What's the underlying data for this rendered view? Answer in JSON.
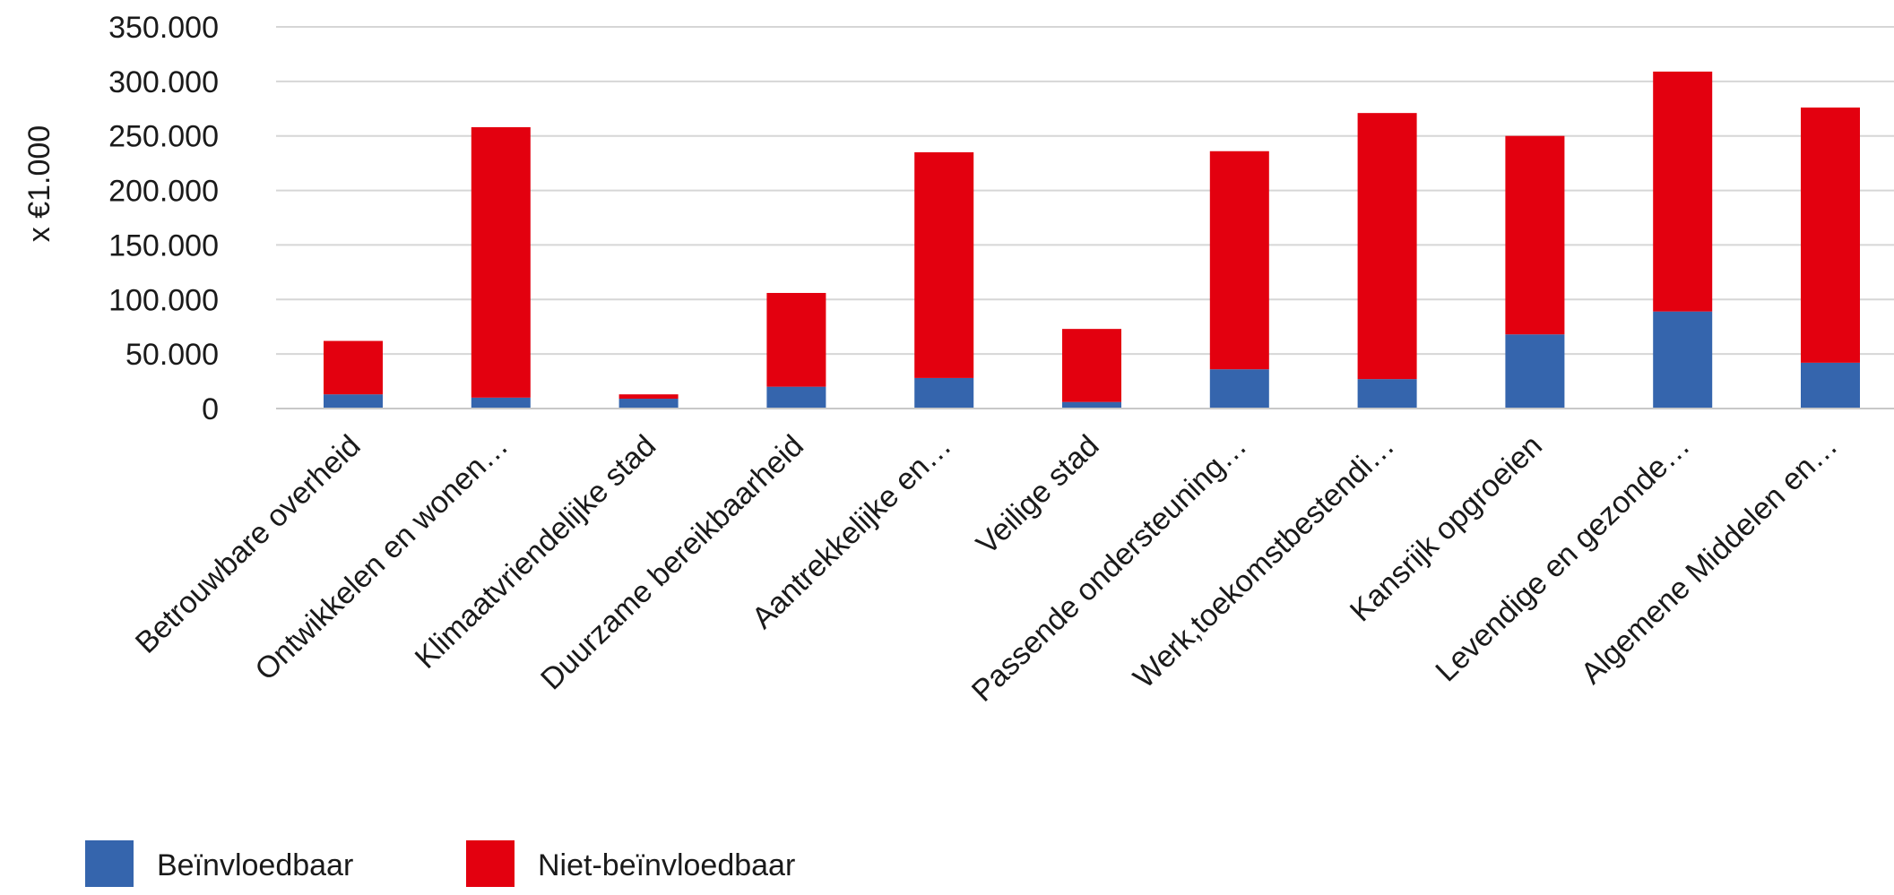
{
  "chart_data": {
    "type": "bar",
    "stacked": true,
    "ylabel": "x €1.000",
    "ylim": [
      0,
      350000
    ],
    "yticks": [
      0,
      50000,
      100000,
      150000,
      200000,
      250000,
      300000,
      350000
    ],
    "ytick_labels": [
      "0",
      "50.000",
      "100.000",
      "150.000",
      "200.000",
      "250.000",
      "300.000",
      "350.000"
    ],
    "grid": true,
    "legend_position": "bottom-left",
    "categories": [
      "Betrouwbare overheid",
      "Ontwikkelen en wonen…",
      "Klimaatvriendelijke stad",
      "Duurzame bereikbaarheid",
      "Aantrekkelijke en…",
      "Veilige stad",
      "Passende ondersteuning…",
      "Werk,toekomstbestendi…",
      "Kansrijk opgroeien",
      "Levendige en gezonde…",
      "Algemene Middelen en…"
    ],
    "series": [
      {
        "name": "Beïnvloedbaar",
        "color": "#3565ad",
        "values": [
          13000,
          10000,
          9000,
          20000,
          28000,
          6000,
          36000,
          27000,
          68000,
          89000,
          42000
        ]
      },
      {
        "name": "Niet-beïnvloedbaar",
        "color": "#e3000f",
        "values": [
          49000,
          248000,
          4000,
          86000,
          207000,
          67000,
          200000,
          244000,
          182000,
          220000,
          234000
        ]
      }
    ]
  }
}
